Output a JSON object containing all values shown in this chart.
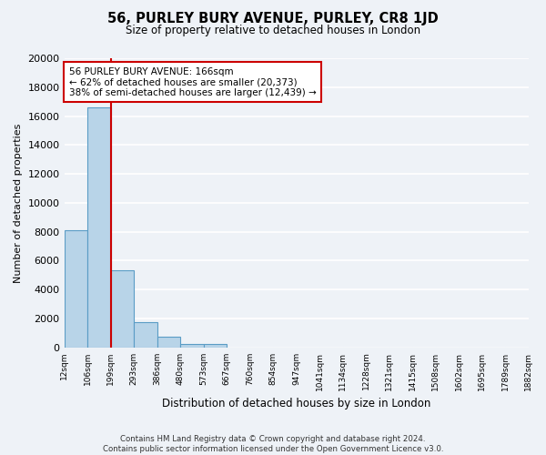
{
  "title": "56, PURLEY BURY AVENUE, PURLEY, CR8 1JD",
  "subtitle": "Size of property relative to detached houses in London",
  "xlabel": "Distribution of detached houses by size in London",
  "ylabel": "Number of detached properties",
  "bin_labels": [
    "12sqm",
    "106sqm",
    "199sqm",
    "293sqm",
    "386sqm",
    "480sqm",
    "573sqm",
    "667sqm",
    "760sqm",
    "854sqm",
    "947sqm",
    "1041sqm",
    "1134sqm",
    "1228sqm",
    "1321sqm",
    "1415sqm",
    "1508sqm",
    "1602sqm",
    "1695sqm",
    "1789sqm",
    "1882sqm"
  ],
  "bar_heights": [
    8100,
    16600,
    5300,
    1750,
    750,
    230,
    230,
    0,
    0,
    0,
    0,
    0,
    0,
    0,
    0,
    0,
    0,
    0,
    0,
    0
  ],
  "bar_color": "#b8d4e8",
  "bar_edgecolor": "#5a9cc5",
  "vline_x": 1.5,
  "vline_color": "#cc0000",
  "ylim": [
    0,
    20000
  ],
  "yticks": [
    0,
    2000,
    4000,
    6000,
    8000,
    10000,
    12000,
    14000,
    16000,
    18000,
    20000
  ],
  "annotation_title": "56 PURLEY BURY AVENUE: 166sqm",
  "annotation_line1": "← 62% of detached houses are smaller (20,373)",
  "annotation_line2": "38% of semi-detached houses are larger (12,439) →",
  "annotation_box_color": "#ffffff",
  "annotation_box_edgecolor": "#cc0000",
  "footer_line1": "Contains HM Land Registry data © Crown copyright and database right 2024.",
  "footer_line2": "Contains public sector information licensed under the Open Government Licence v3.0.",
  "background_color": "#eef2f7",
  "grid_color": "#ffffff"
}
